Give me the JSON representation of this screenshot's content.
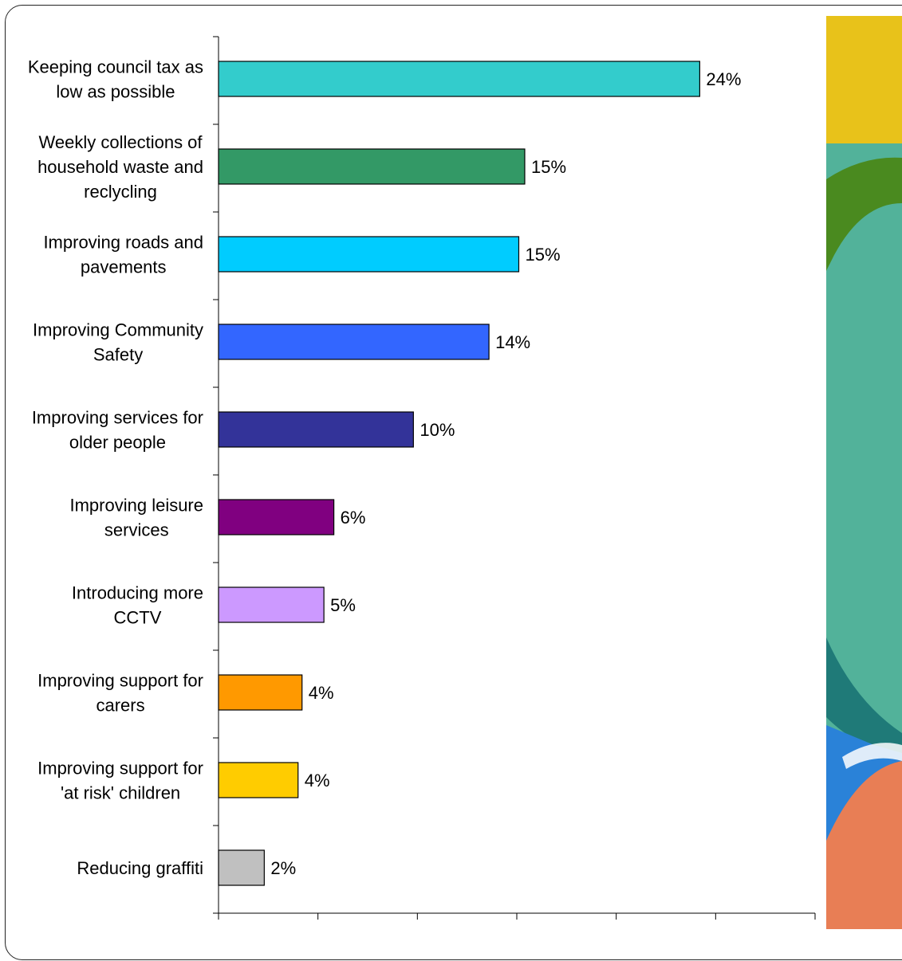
{
  "chart_data": {
    "type": "bar",
    "orientation": "horizontal",
    "categories": [
      [
        "Keeping council tax as",
        "low as possible"
      ],
      [
        "Weekly collections of",
        "household waste and",
        "reclycling"
      ],
      [
        "Improving roads and",
        "pavements"
      ],
      [
        "Improving Community",
        "Safety"
      ],
      [
        "Improving services for",
        "older people"
      ],
      [
        "Improving leisure",
        "services"
      ],
      [
        "Introducing more",
        "CCTV"
      ],
      [
        "Improving support for",
        "carers"
      ],
      [
        "Improving support for",
        "'at risk' children"
      ],
      [
        "Reducing graffiti"
      ]
    ],
    "values": [
      24.2,
      15.4,
      15.1,
      13.6,
      9.8,
      5.8,
      5.3,
      4.2,
      4.0,
      2.3
    ],
    "data_labels": [
      "24%",
      "15%",
      "15%",
      "14%",
      "10%",
      "6%",
      "5%",
      "4%",
      "4%",
      "2%"
    ],
    "colors": [
      "#33CCCC",
      "#339966",
      "#00CCFF",
      "#3366FF",
      "#333399",
      "#800080",
      "#CC99FF",
      "#FF9900",
      "#FFCC00",
      "#C0C0C0"
    ],
    "xlim": [
      0,
      30
    ],
    "x_ticks": [
      0,
      5,
      10,
      15,
      20,
      25,
      30
    ],
    "grid": false,
    "legend": "none",
    "title": "",
    "xlabel": "",
    "ylabel": ""
  },
  "decor_colors": [
    "#E8C21A",
    "#4A8A1F",
    "#52B29A",
    "#1F7A78",
    "#2A82D8",
    "#E87E55"
  ]
}
